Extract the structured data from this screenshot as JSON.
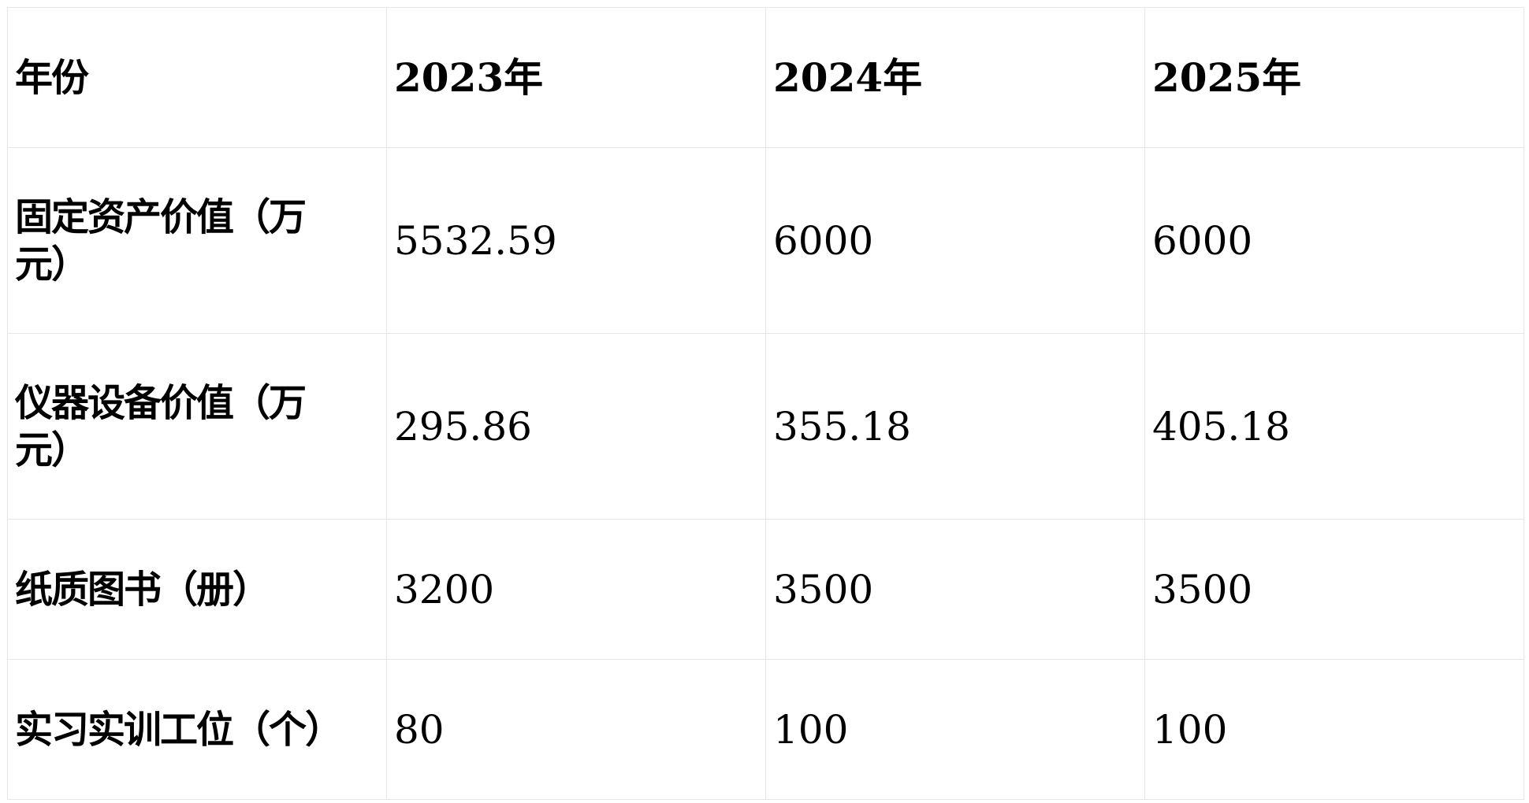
{
  "table": {
    "header": [
      "年份",
      "2023年",
      "2024年",
      "2025年"
    ],
    "rows": [
      {
        "label": "固定资产价值（万元）",
        "values": [
          "5532.59",
          "6000",
          "6000"
        ]
      },
      {
        "label": "仪器设备价值（万元）",
        "values": [
          "295.86",
          "355.18",
          "405.18"
        ]
      },
      {
        "label": "纸质图书（册）",
        "values": [
          "3200",
          "3500",
          "3500"
        ]
      },
      {
        "label": "实习实训工位（个）",
        "values": [
          "80",
          "100",
          "100"
        ]
      }
    ]
  }
}
